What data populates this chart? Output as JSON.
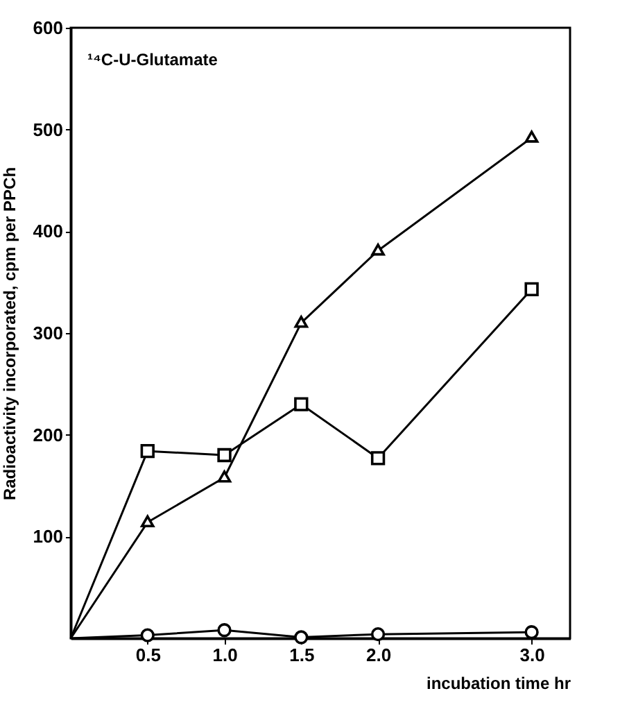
{
  "chart_data": {
    "type": "line",
    "xlabel": "incubation time hr",
    "ylabel": "Radioactivity incorporated, cpm per PPCh",
    "annotations": [
      "¹⁴C-U-Glutamate"
    ],
    "x": [
      0,
      0.5,
      1.0,
      1.5,
      2.0,
      3.0
    ],
    "series": [
      {
        "color": "#000000",
        "marker": "triangle",
        "values": [
          0,
          114,
          158,
          310,
          381,
          492
        ]
      },
      {
        "color": "#000000",
        "marker": "square",
        "values": [
          0,
          184,
          180,
          230,
          177,
          343
        ]
      },
      {
        "color": "#000000",
        "marker": "circle",
        "values": [
          0,
          3,
          8,
          1,
          4,
          6
        ]
      }
    ],
    "xlim": [
      0,
      3.25
    ],
    "ylim": [
      0,
      600
    ],
    "xticks": [
      0.5,
      {
        "value": 1,
        "label": "1.0"
      },
      1.5,
      {
        "value": 2,
        "label": "2.0"
      },
      {
        "value": 3,
        "label": "3.0"
      }
    ],
    "yticks": [
      100,
      200,
      300,
      400,
      500,
      600
    ],
    "grid": false,
    "line_style": "solid"
  }
}
